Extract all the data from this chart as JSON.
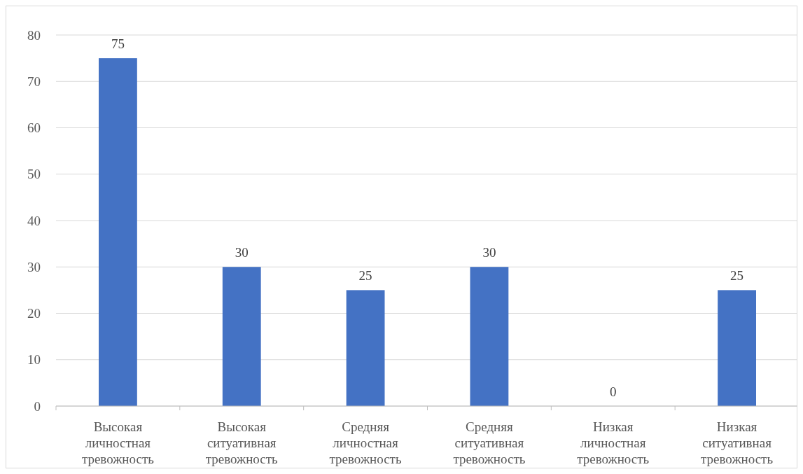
{
  "chart_data": {
    "type": "bar",
    "categories": [
      "Высокая личностная тревожность",
      "Высокая ситуативная тревожность",
      "Средняя личностная тревожность",
      "Средняя ситуативная тревожность",
      "Низкая личностная тревожность",
      "Низкая ситуативная тревожность"
    ],
    "values": [
      75,
      30,
      25,
      30,
      0,
      25
    ],
    "color": "#4472c4",
    "ylim": [
      0,
      80
    ],
    "yticks": [
      0,
      10,
      20,
      30,
      40,
      50,
      60,
      70,
      80
    ],
    "grid": "y",
    "data_labels": true
  }
}
